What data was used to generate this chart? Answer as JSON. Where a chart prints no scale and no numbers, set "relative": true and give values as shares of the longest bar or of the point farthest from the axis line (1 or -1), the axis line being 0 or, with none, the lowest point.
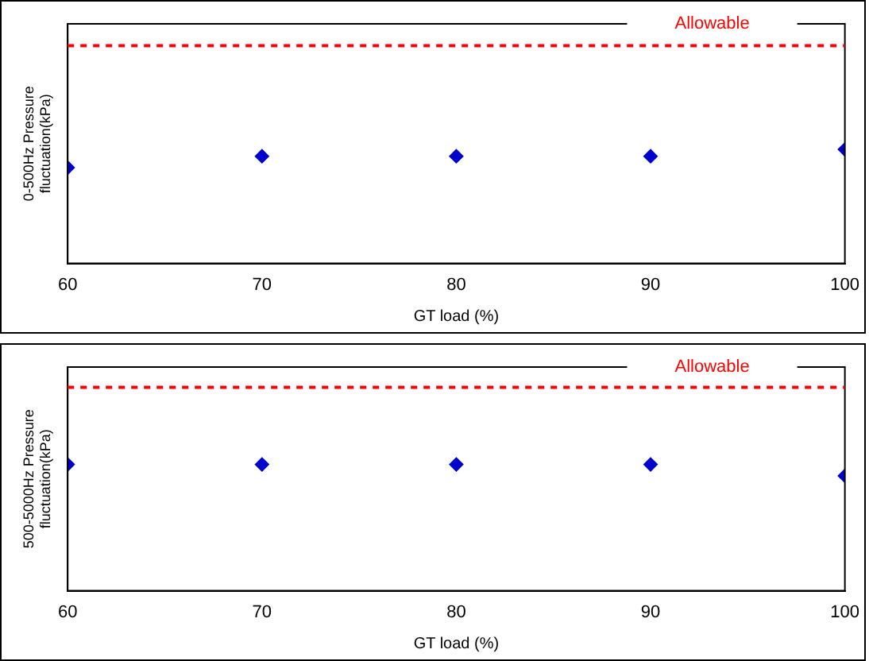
{
  "chart_data": [
    {
      "type": "scatter",
      "xlabel": "GT load (%)",
      "ylabel": "0-500Hz Pressure fluctuation(kPa)",
      "relative": true,
      "x": [
        60,
        70,
        80,
        90,
        100
      ],
      "xlim": [
        60,
        100
      ],
      "xticks": [
        60,
        70,
        80,
        90,
        100
      ],
      "series": [
        {
          "color": "#0000cc",
          "values": [
            0.84,
            0.94,
            0.94,
            0.94,
            1
          ]
        }
      ],
      "ref_lines": [
        {
          "axis": "y",
          "value": 1.91,
          "label": "Allowable",
          "color": "#ff0000",
          "line_style": "dashed"
        }
      ],
      "marker": "diamond",
      "grid": false,
      "legend": false
    },
    {
      "type": "scatter",
      "xlabel": "GT load (%)",
      "ylabel": "500-5000Hz Pressure fluctuation(kPa)",
      "relative": true,
      "x": [
        60,
        70,
        80,
        90,
        100
      ],
      "xlim": [
        60,
        100
      ],
      "xticks": [
        60,
        70,
        80,
        90,
        100
      ],
      "series": [
        {
          "color": "#0000cc",
          "values": [
            1,
            1,
            1,
            1,
            0.91
          ]
        }
      ],
      "ref_lines": [
        {
          "axis": "y",
          "value": 1.61,
          "label": "Allowable",
          "color": "#ff0000",
          "line_style": "dashed"
        }
      ],
      "marker": "diamond",
      "grid": false,
      "legend": false
    }
  ]
}
